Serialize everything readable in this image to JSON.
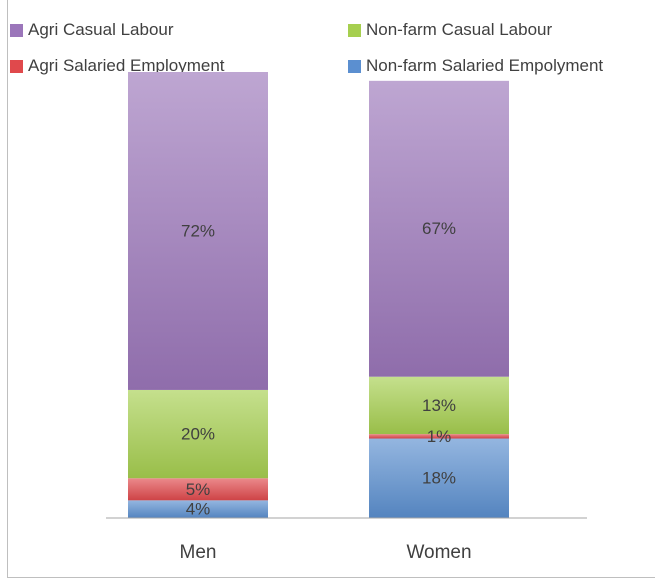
{
  "chart_data": {
    "type": "bar",
    "stacked": true,
    "categories": [
      "Men",
      "Women"
    ],
    "series": [
      {
        "name": "Non-farm Salaried Empolyment",
        "values": [
          4,
          18
        ],
        "labels": [
          "4%",
          "18%"
        ],
        "color": "#5b8fd0"
      },
      {
        "name": "Agri Salaried Employment",
        "values": [
          5,
          1
        ],
        "labels": [
          "5%",
          "1%"
        ],
        "color": "#e0494c"
      },
      {
        "name": "Non-farm Casual Labour",
        "values": [
          20,
          13
        ],
        "labels": [
          "20%",
          "13%"
        ],
        "color": "#a6cf4f"
      },
      {
        "name": "Agri Casual Labour",
        "values": [
          72,
          67
        ],
        "labels": [
          "72%",
          "67%"
        ],
        "color": "#9b76ba"
      }
    ],
    "legend_order": [
      "Agri Casual Labour",
      "Non-farm Casual Labour",
      "Agri Salaried Employment",
      "Non-farm Salaried Empolyment"
    ],
    "legend_position": "top",
    "ylim": [
      0,
      101
    ],
    "grid": false,
    "title": "",
    "xlabel": "",
    "ylabel": ""
  }
}
